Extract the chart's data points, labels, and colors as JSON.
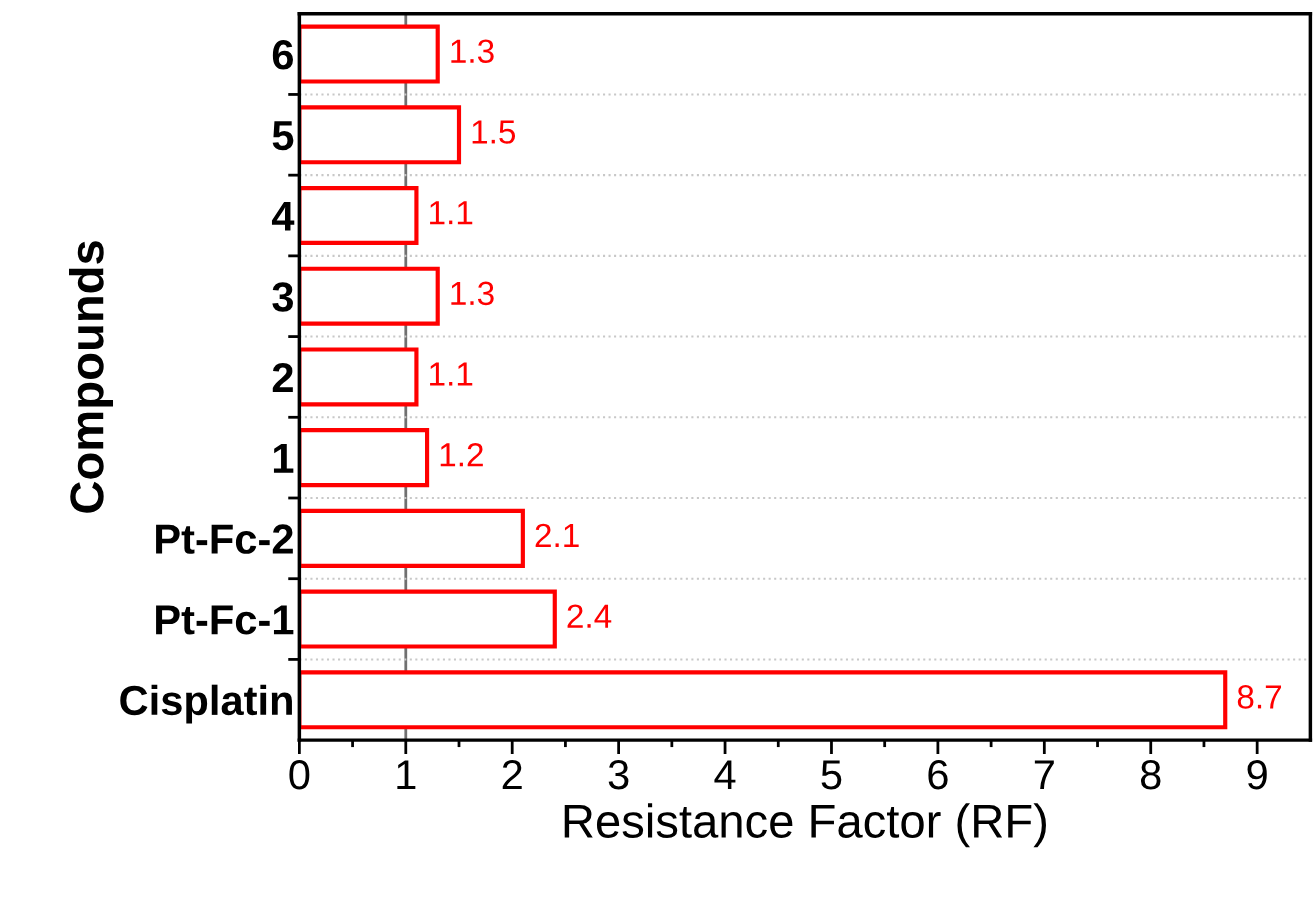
{
  "chart_data": {
    "type": "bar",
    "orientation": "horizontal",
    "categories": [
      "6",
      "5",
      "4",
      "3",
      "2",
      "1",
      "Pt-Fc-2",
      "Pt-Fc-1",
      "Cisplatin"
    ],
    "values": [
      1.3,
      1.5,
      1.1,
      1.3,
      1.1,
      1.2,
      2.1,
      2.4,
      8.7
    ],
    "color": "#ff0000",
    "data_labels": true,
    "xlabel": "Resistance Factor (RF)",
    "ylabel": "Compounds",
    "xlim": [
      0,
      9.5
    ],
    "xticks": [
      0,
      1,
      2,
      3,
      4,
      5,
      6,
      7,
      8,
      9
    ],
    "ref_lines": [
      {
        "axis": "x",
        "value": 1,
        "color": "#707070"
      }
    ],
    "grid": "y"
  }
}
